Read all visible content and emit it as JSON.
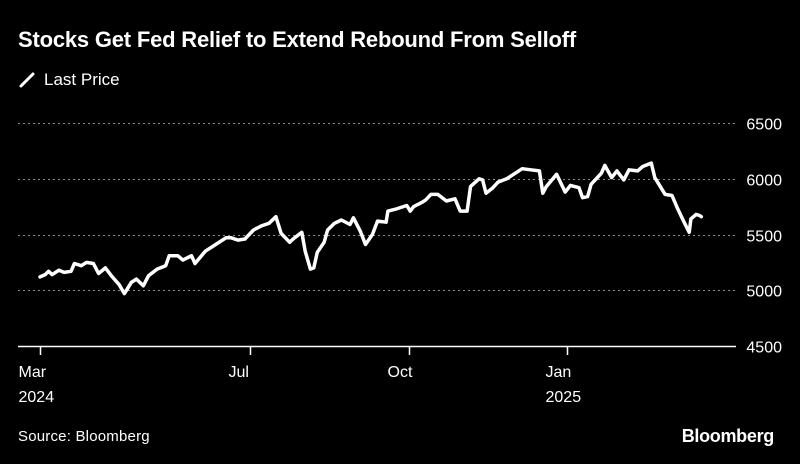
{
  "title": "Stocks Get Fed Relief to Extend Rebound From Selloff",
  "source": "Source: Bloomberg",
  "brand": "Bloomberg",
  "colors": {
    "background": "#000000",
    "line": "#ffffff",
    "grid": "#8c8c8c",
    "text": "#ffffff"
  },
  "chart_data": {
    "type": "line",
    "title": "",
    "xlabel": "",
    "ylabel": "",
    "ylim": [
      4500,
      6500
    ],
    "yticks": [
      4500,
      5000,
      5500,
      6000,
      6500
    ],
    "xlim": [
      "2024-03-01",
      "2025-03-21"
    ],
    "xticks": [
      {
        "date": "2024-03-01",
        "label": "Mar",
        "sublabel": "2024"
      },
      {
        "date": "2024-07-01",
        "label": "Jul",
        "sublabel": ""
      },
      {
        "date": "2024-10-01",
        "label": "Oct",
        "sublabel": ""
      },
      {
        "date": "2025-01-01",
        "label": "Jan",
        "sublabel": "2025"
      }
    ],
    "grid": true,
    "legend_position": "top-left",
    "series": [
      {
        "name": "Last Price",
        "points": [
          [
            "2024-03-01",
            5120
          ],
          [
            "2024-03-04",
            5140
          ],
          [
            "2024-03-06",
            5170
          ],
          [
            "2024-03-08",
            5140
          ],
          [
            "2024-03-12",
            5180
          ],
          [
            "2024-03-15",
            5160
          ],
          [
            "2024-03-19",
            5170
          ],
          [
            "2024-03-21",
            5240
          ],
          [
            "2024-03-25",
            5220
          ],
          [
            "2024-03-28",
            5250
          ],
          [
            "2024-04-01",
            5240
          ],
          [
            "2024-04-04",
            5150
          ],
          [
            "2024-04-08",
            5200
          ],
          [
            "2024-04-12",
            5120
          ],
          [
            "2024-04-16",
            5050
          ],
          [
            "2024-04-19",
            4970
          ],
          [
            "2024-04-23",
            5070
          ],
          [
            "2024-04-26",
            5100
          ],
          [
            "2024-04-30",
            5040
          ],
          [
            "2024-05-03",
            5130
          ],
          [
            "2024-05-08",
            5190
          ],
          [
            "2024-05-13",
            5220
          ],
          [
            "2024-05-15",
            5310
          ],
          [
            "2024-05-20",
            5310
          ],
          [
            "2024-05-23",
            5270
          ],
          [
            "2024-05-28",
            5310
          ],
          [
            "2024-05-30",
            5240
          ],
          [
            "2024-06-05",
            5350
          ],
          [
            "2024-06-12",
            5420
          ],
          [
            "2024-06-17",
            5470
          ],
          [
            "2024-06-20",
            5470
          ],
          [
            "2024-06-24",
            5450
          ],
          [
            "2024-06-28",
            5460
          ],
          [
            "2024-07-03",
            5540
          ],
          [
            "2024-07-08",
            5580
          ],
          [
            "2024-07-12",
            5600
          ],
          [
            "2024-07-16",
            5660
          ],
          [
            "2024-07-19",
            5510
          ],
          [
            "2024-07-24",
            5430
          ],
          [
            "2024-07-26",
            5460
          ],
          [
            "2024-07-31",
            5520
          ],
          [
            "2024-08-02",
            5350
          ],
          [
            "2024-08-05",
            5190
          ],
          [
            "2024-08-07",
            5200
          ],
          [
            "2024-08-09",
            5340
          ],
          [
            "2024-08-13",
            5430
          ],
          [
            "2024-08-15",
            5540
          ],
          [
            "2024-08-19",
            5600
          ],
          [
            "2024-08-23",
            5630
          ],
          [
            "2024-08-28",
            5590
          ],
          [
            "2024-08-30",
            5650
          ],
          [
            "2024-09-03",
            5530
          ],
          [
            "2024-09-06",
            5410
          ],
          [
            "2024-09-10",
            5500
          ],
          [
            "2024-09-13",
            5620
          ],
          [
            "2024-09-18",
            5610
          ],
          [
            "2024-09-19",
            5710
          ],
          [
            "2024-09-24",
            5730
          ],
          [
            "2024-09-30",
            5760
          ],
          [
            "2024-10-02",
            5710
          ],
          [
            "2024-10-04",
            5750
          ],
          [
            "2024-10-09",
            5790
          ],
          [
            "2024-10-11",
            5810
          ],
          [
            "2024-10-14",
            5860
          ],
          [
            "2024-10-18",
            5860
          ],
          [
            "2024-10-23",
            5800
          ],
          [
            "2024-10-28",
            5820
          ],
          [
            "2024-10-31",
            5710
          ],
          [
            "2024-11-04",
            5710
          ],
          [
            "2024-11-06",
            5930
          ],
          [
            "2024-11-11",
            6000
          ],
          [
            "2024-11-13",
            5990
          ],
          [
            "2024-11-15",
            5870
          ],
          [
            "2024-11-19",
            5920
          ],
          [
            "2024-11-22",
            5970
          ],
          [
            "2024-11-27",
            6000
          ],
          [
            "2024-12-02",
            6050
          ],
          [
            "2024-12-06",
            6090
          ],
          [
            "2024-12-11",
            6080
          ],
          [
            "2024-12-16",
            6070
          ],
          [
            "2024-12-18",
            5870
          ],
          [
            "2024-12-20",
            5930
          ],
          [
            "2024-12-26",
            6040
          ],
          [
            "2024-12-31",
            5880
          ],
          [
            "2025-01-03",
            5940
          ],
          [
            "2025-01-08",
            5920
          ],
          [
            "2025-01-10",
            5830
          ],
          [
            "2025-01-13",
            5840
          ],
          [
            "2025-01-15",
            5950
          ],
          [
            "2025-01-21",
            6050
          ],
          [
            "2025-01-23",
            6120
          ],
          [
            "2025-01-27",
            6010
          ],
          [
            "2025-01-30",
            6070
          ],
          [
            "2025-02-03",
            5990
          ],
          [
            "2025-02-06",
            6080
          ],
          [
            "2025-02-11",
            6070
          ],
          [
            "2025-02-14",
            6110
          ],
          [
            "2025-02-19",
            6140
          ],
          [
            "2025-02-21",
            6010
          ],
          [
            "2025-02-27",
            5860
          ],
          [
            "2025-03-03",
            5850
          ],
          [
            "2025-03-06",
            5740
          ],
          [
            "2025-03-10",
            5610
          ],
          [
            "2025-03-13",
            5520
          ],
          [
            "2025-03-14",
            5640
          ],
          [
            "2025-03-17",
            5680
          ],
          [
            "2025-03-19",
            5670
          ],
          [
            "2025-03-20",
            5660
          ]
        ]
      }
    ]
  }
}
